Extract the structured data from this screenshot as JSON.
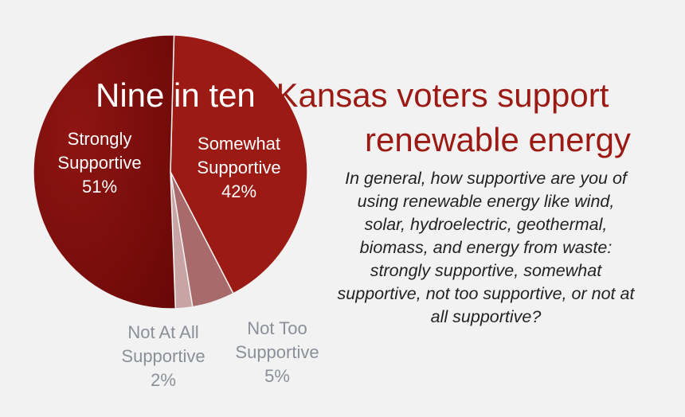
{
  "headline": {
    "part1": "Nine in ten",
    "part2": "Kansas voters support",
    "part3": "renewable energy"
  },
  "question": "In general, how supportive are you of using renewable energy like wind, solar, hydroelectric, geothermal, biomass, and energy from waste:  strongly supportive, somewhat supportive, not too supportive, or not at all supportive?",
  "chart_data": {
    "type": "pie",
    "slices": [
      {
        "label": [
          "Strongly",
          "Supportive",
          "51%"
        ],
        "value": 51,
        "color": "#7a0d0b"
      },
      {
        "label": [
          "Somewhat",
          "Supportive",
          "42%"
        ],
        "value": 42,
        "color": "#9b1a14"
      },
      {
        "label": [
          "Not Too",
          "Supportive",
          "5%"
        ],
        "value": 5,
        "color": "#a86a6a"
      },
      {
        "label": [
          "Not At All",
          "Supportive",
          "2%"
        ],
        "value": 2,
        "color": "#c9a4a4"
      }
    ]
  }
}
